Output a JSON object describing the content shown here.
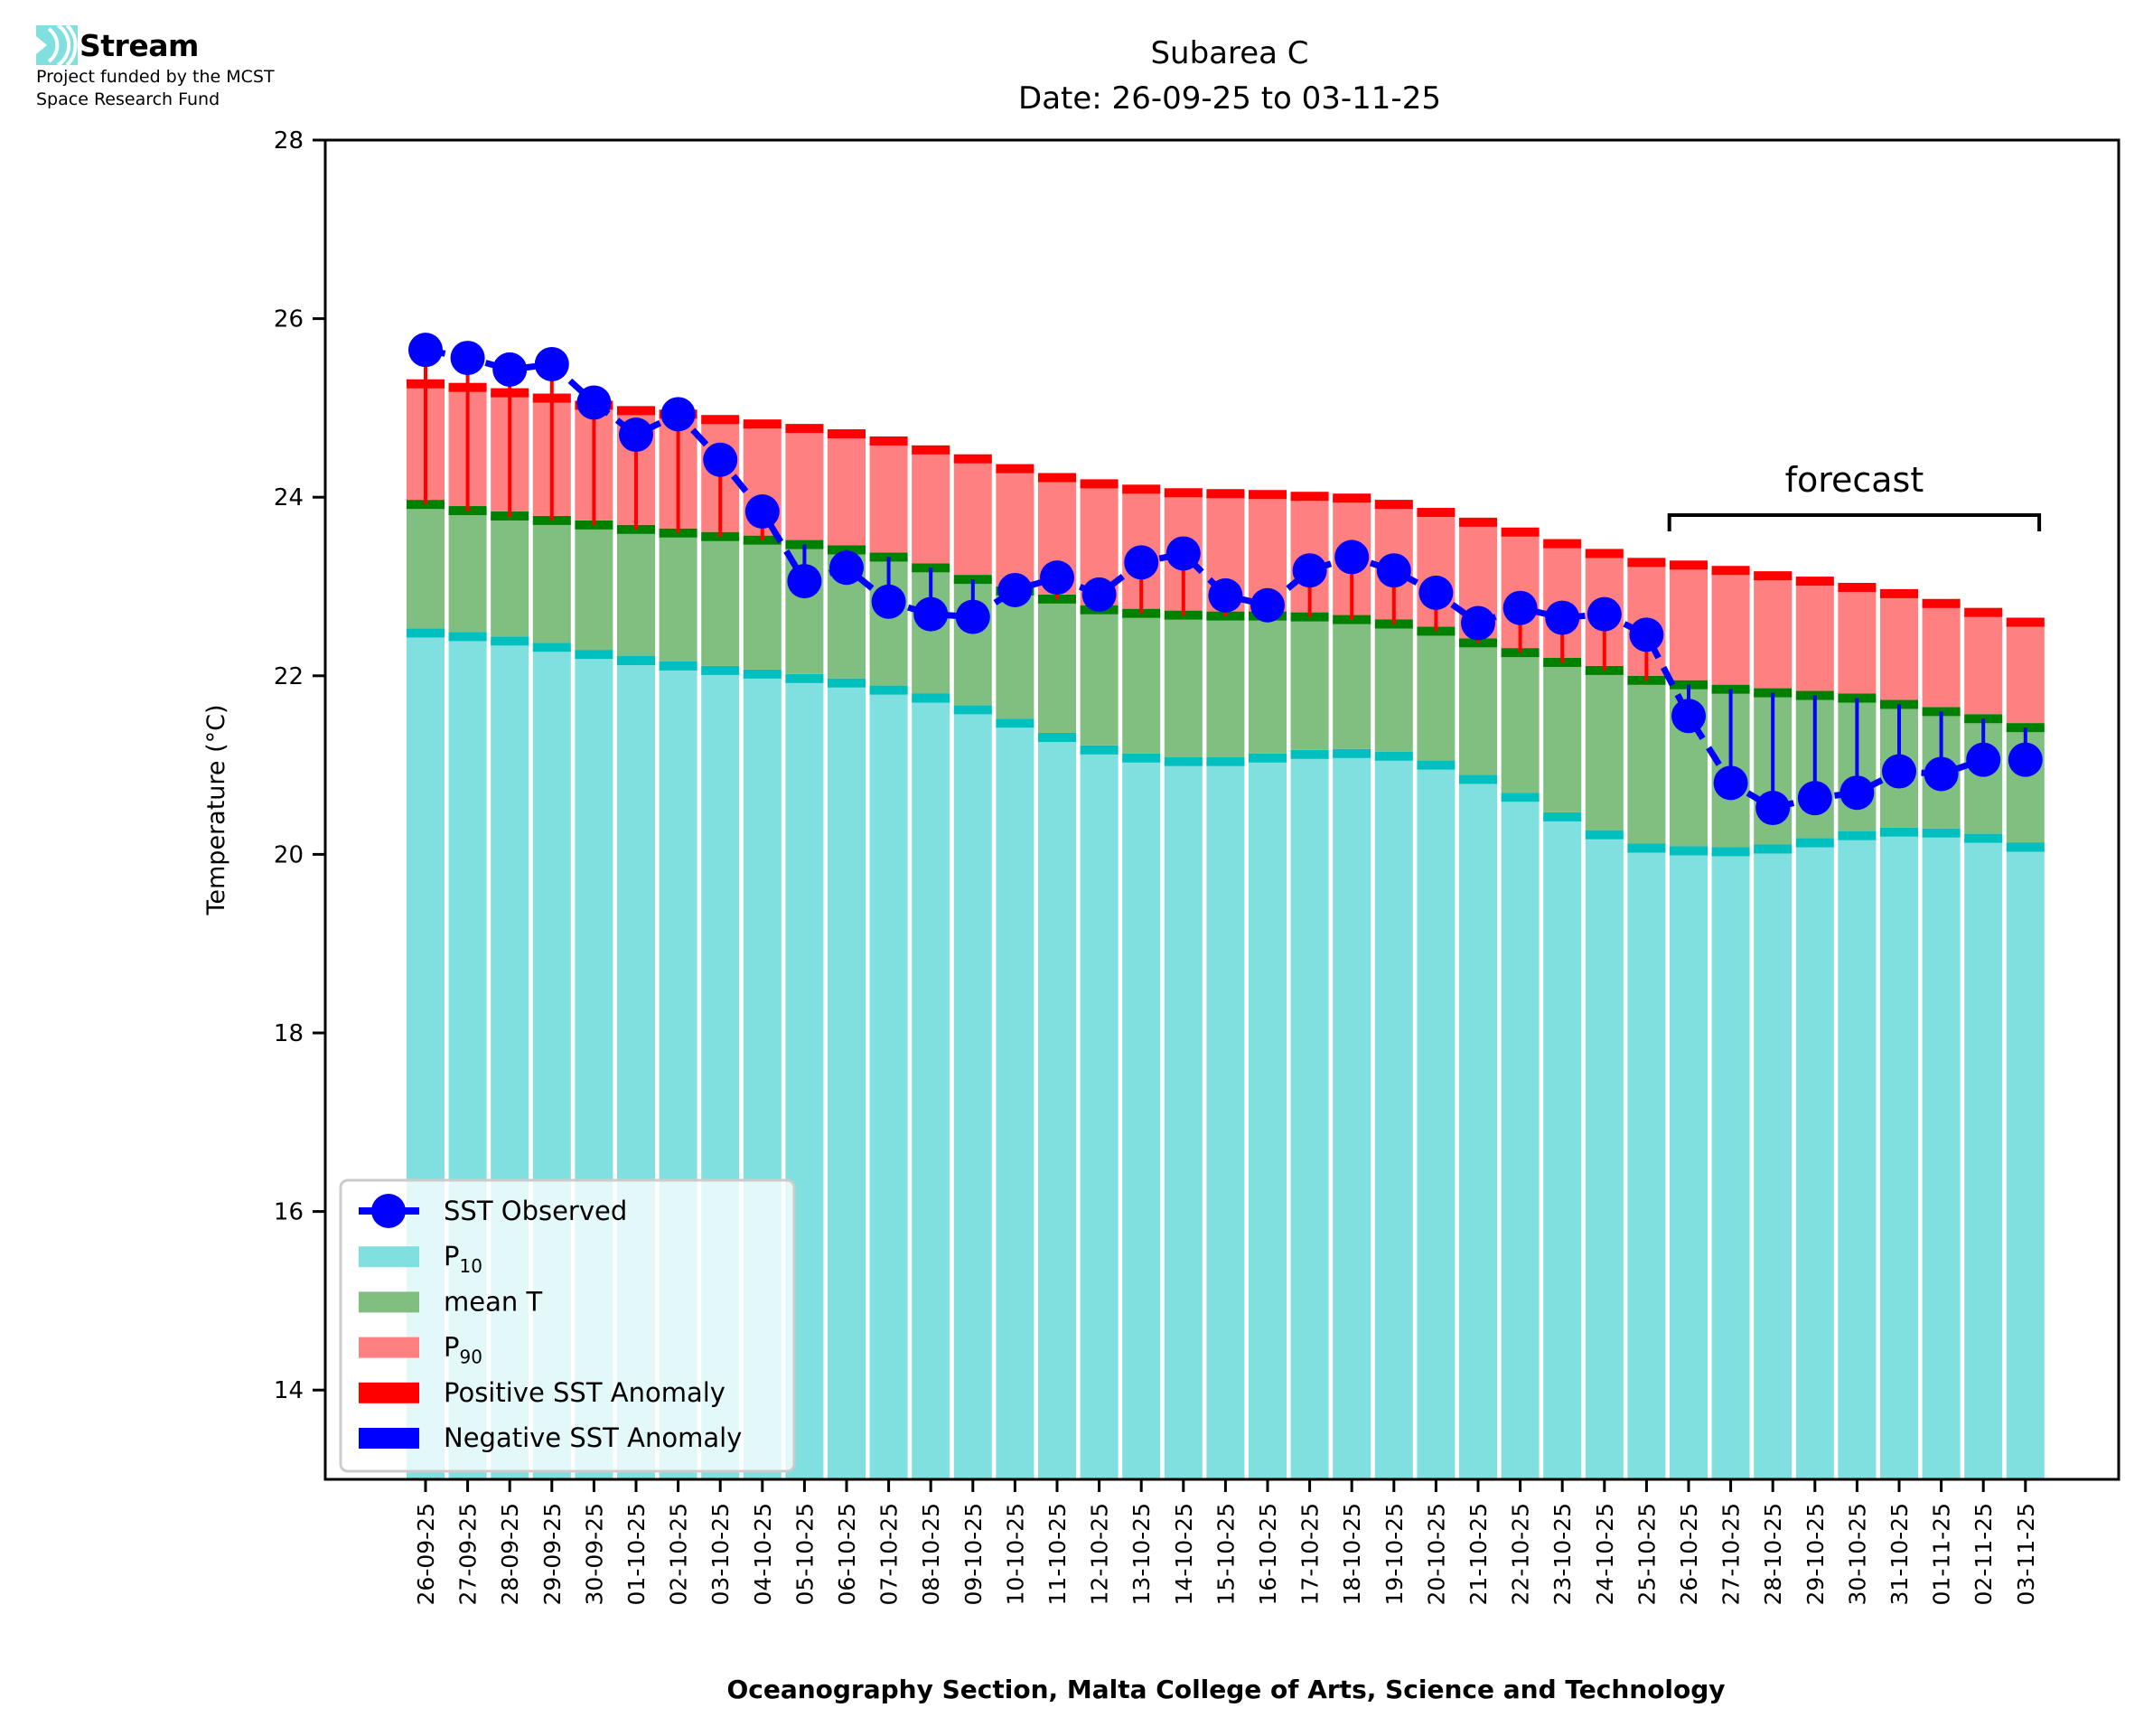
{
  "logo": {
    "name": "Stream",
    "line1": "Project funded by the MCST",
    "line2": "Space Research Fund",
    "color": "#80dfdf"
  },
  "chart_data": {
    "type": "bar",
    "title": "Subarea C",
    "subtitle": "Date: 26-09-25 to 03-11-25",
    "xlabel": "Oceanography Section, Malta College of Arts, Science and Technology",
    "ylabel": "Temperature (°C)",
    "ylim": [
      13,
      28
    ],
    "yticks": [
      14,
      16,
      18,
      20,
      22,
      24,
      26,
      28
    ],
    "grid": false,
    "legend_position": "lower-left",
    "categories": [
      "26-09-25",
      "27-09-25",
      "28-09-25",
      "29-09-25",
      "30-09-25",
      "01-10-25",
      "02-10-25",
      "03-10-25",
      "04-10-25",
      "05-10-25",
      "06-10-25",
      "07-10-25",
      "08-10-25",
      "09-10-25",
      "10-10-25",
      "11-10-25",
      "12-10-25",
      "13-10-25",
      "14-10-25",
      "15-10-25",
      "16-10-25",
      "17-10-25",
      "18-10-25",
      "19-10-25",
      "20-10-25",
      "21-10-25",
      "22-10-25",
      "23-10-25",
      "24-10-25",
      "25-10-25",
      "26-10-25",
      "27-10-25",
      "28-10-25",
      "29-10-25",
      "30-10-25",
      "31-10-25",
      "01-11-25",
      "02-11-25",
      "03-11-25"
    ],
    "series": [
      {
        "name": "P10",
        "key": "p10",
        "color": "#80dfdf",
        "edge_color": "#00bfbf",
        "values": [
          22.48,
          22.44,
          22.39,
          22.32,
          22.24,
          22.17,
          22.11,
          22.06,
          22.02,
          21.97,
          21.92,
          21.84,
          21.75,
          21.62,
          21.47,
          21.31,
          21.17,
          21.08,
          21.04,
          21.04,
          21.08,
          21.12,
          21.13,
          21.1,
          21.0,
          20.84,
          20.64,
          20.42,
          20.22,
          20.07,
          20.04,
          20.03,
          20.06,
          20.13,
          20.21,
          20.25,
          20.24,
          20.18,
          20.08
        ]
      },
      {
        "name": "mean T",
        "key": "mean",
        "color": "#80bf80",
        "edge_color": "#008000",
        "values": [
          23.92,
          23.85,
          23.79,
          23.74,
          23.69,
          23.64,
          23.6,
          23.56,
          23.52,
          23.47,
          23.41,
          23.33,
          23.21,
          23.08,
          22.95,
          22.86,
          22.74,
          22.7,
          22.68,
          22.67,
          22.67,
          22.66,
          22.63,
          22.58,
          22.5,
          22.37,
          22.26,
          22.15,
          22.06,
          21.95,
          21.9,
          21.85,
          21.81,
          21.78,
          21.75,
          21.68,
          21.6,
          21.52,
          21.42
        ]
      },
      {
        "name": "P90",
        "key": "p90",
        "color": "#ff8080",
        "edge_color": "#ff0000",
        "values": [
          25.27,
          25.23,
          25.17,
          25.11,
          25.03,
          24.97,
          24.93,
          24.87,
          24.82,
          24.77,
          24.71,
          24.63,
          24.53,
          24.43,
          24.32,
          24.22,
          24.15,
          24.09,
          24.05,
          24.04,
          24.03,
          24.01,
          23.99,
          23.92,
          23.83,
          23.72,
          23.61,
          23.48,
          23.37,
          23.27,
          23.24,
          23.18,
          23.12,
          23.06,
          22.99,
          22.92,
          22.81,
          22.71,
          22.6
        ]
      },
      {
        "name": "SST Observed",
        "key": "sst",
        "type": "line",
        "color": "#0000ff",
        "values": [
          25.65,
          25.56,
          25.43,
          25.49,
          25.06,
          24.7,
          24.93,
          24.42,
          23.84,
          23.06,
          23.21,
          22.83,
          22.69,
          22.66,
          22.96,
          23.1,
          22.91,
          23.27,
          23.37,
          22.9,
          22.79,
          23.18,
          23.33,
          23.18,
          22.93,
          22.59,
          22.76,
          22.65,
          22.69,
          22.46,
          21.55,
          20.8,
          20.52,
          20.63,
          20.69,
          20.93,
          20.9,
          21.06,
          21.06
        ]
      }
    ],
    "legend": [
      {
        "label": "SST Observed",
        "kind": "line-marker",
        "color": "#0000ff"
      },
      {
        "label": "P",
        "sub": "10",
        "kind": "patch",
        "color": "#80dfdf"
      },
      {
        "label": "mean T",
        "kind": "patch",
        "color": "#80bf80"
      },
      {
        "label": "P",
        "sub": "90",
        "kind": "patch",
        "color": "#ff8080"
      },
      {
        "label": "Positive SST Anomaly",
        "kind": "patch",
        "color": "#ff0000"
      },
      {
        "label": "Negative SST Anomaly",
        "kind": "patch",
        "color": "#0000ff"
      }
    ],
    "annotations": [
      {
        "text": "forecast",
        "kind": "bracket",
        "from_category": "26-10-25",
        "to_category": "03-11-25",
        "at_value": 23.8
      }
    ],
    "anomaly_colors": {
      "positive": "#ff0000",
      "negative": "#0000ff"
    }
  }
}
